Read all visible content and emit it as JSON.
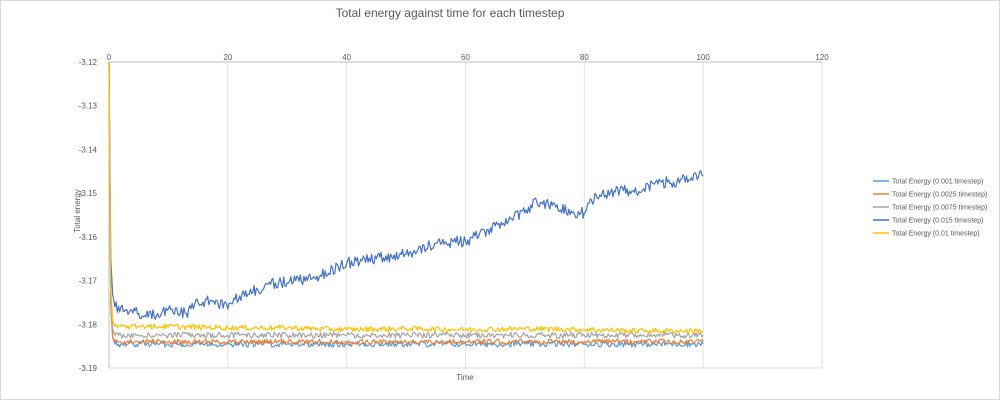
{
  "chart_data": {
    "type": "line",
    "title": "Total energy against time for each timestep",
    "xlabel": "Time",
    "ylabel": "Total energy",
    "xlim": [
      0,
      120
    ],
    "ylim": [
      -3.19,
      -3.12
    ],
    "x_ticks": [
      0,
      20,
      40,
      60,
      80,
      100,
      120
    ],
    "x_tick_labels": [
      "0",
      "20",
      "40",
      "60",
      "80",
      "100",
      "120"
    ],
    "y_ticks": [
      -3.12,
      -3.13,
      -3.14,
      -3.15,
      -3.16,
      -3.17,
      -3.18,
      -3.19
    ],
    "y_tick_labels": [
      "-3.12",
      "-3.13",
      "-3.14",
      "-3.15",
      "-3.16",
      "-3.17",
      "-3.18",
      "-3.19"
    ],
    "x_axis_position": "top",
    "grid": "vertical",
    "legend_position": "right",
    "series": [
      {
        "name": "Total Energy (0.001 timestep)",
        "color": "#5b9bd5",
        "x": [
          0,
          0.3,
          0.6,
          1,
          2,
          5,
          10,
          20,
          30,
          40,
          50,
          60,
          70,
          80,
          90,
          100
        ],
        "y": [
          -3.12,
          -3.175,
          -3.183,
          -3.1845,
          -3.1845,
          -3.1845,
          -3.1845,
          -3.1845,
          -3.1845,
          -3.1845,
          -3.1845,
          -3.1845,
          -3.1845,
          -3.1845,
          -3.1845,
          -3.1845
        ]
      },
      {
        "name": "Total Energy (0.0025 timestep)",
        "color": "#ed7d31",
        "x": [
          0,
          0.3,
          0.6,
          1,
          2,
          5,
          10,
          20,
          30,
          40,
          50,
          60,
          70,
          80,
          90,
          100
        ],
        "y": [
          -3.12,
          -3.176,
          -3.183,
          -3.184,
          -3.184,
          -3.184,
          -3.184,
          -3.184,
          -3.184,
          -3.184,
          -3.184,
          -3.184,
          -3.184,
          -3.184,
          -3.184,
          -3.184
        ]
      },
      {
        "name": "Total Energy (0.0075 timestep)",
        "color": "#a5a5a5",
        "x": [
          0,
          0.3,
          0.6,
          1,
          2,
          5,
          10,
          20,
          30,
          40,
          50,
          60,
          70,
          80,
          90,
          100
        ],
        "y": [
          -3.12,
          -3.174,
          -3.181,
          -3.1825,
          -3.1825,
          -3.1825,
          -3.1825,
          -3.1825,
          -3.1825,
          -3.1825,
          -3.1825,
          -3.1825,
          -3.1825,
          -3.1825,
          -3.1825,
          -3.1825
        ]
      },
      {
        "name": "Total Energy (0.015 timestep)",
        "color": "#4472c4",
        "x": [
          0,
          0.3,
          0.6,
          1,
          2,
          5,
          8,
          10,
          13,
          15,
          18,
          20,
          22,
          25,
          28,
          30,
          35,
          40,
          45,
          50,
          55,
          60,
          65,
          70,
          72,
          75,
          78,
          80,
          82,
          85,
          88,
          90,
          93,
          95,
          98,
          100
        ],
        "y": [
          -3.12,
          -3.165,
          -3.173,
          -3.176,
          -3.176,
          -3.1775,
          -3.178,
          -3.1765,
          -3.1775,
          -3.175,
          -3.1745,
          -3.1765,
          -3.1735,
          -3.172,
          -3.1705,
          -3.1705,
          -3.169,
          -3.166,
          -3.165,
          -3.164,
          -3.1615,
          -3.161,
          -3.1575,
          -3.1545,
          -3.152,
          -3.1525,
          -3.1545,
          -3.1545,
          -3.1505,
          -3.1495,
          -3.1495,
          -3.149,
          -3.1475,
          -3.1475,
          -3.1465,
          -3.146
        ]
      },
      {
        "name": "Total Energy (0.01 timestep)",
        "color": "#ffc000",
        "x": [
          0,
          0.3,
          0.6,
          1,
          2,
          5,
          10,
          20,
          30,
          40,
          50,
          60,
          70,
          80,
          90,
          100
        ],
        "y": [
          -3.12,
          -3.172,
          -3.179,
          -3.1805,
          -3.1805,
          -3.1805,
          -3.1805,
          -3.1808,
          -3.1808,
          -3.1812,
          -3.181,
          -3.1812,
          -3.181,
          -3.1812,
          -3.1815,
          -3.1815
        ]
      }
    ]
  }
}
